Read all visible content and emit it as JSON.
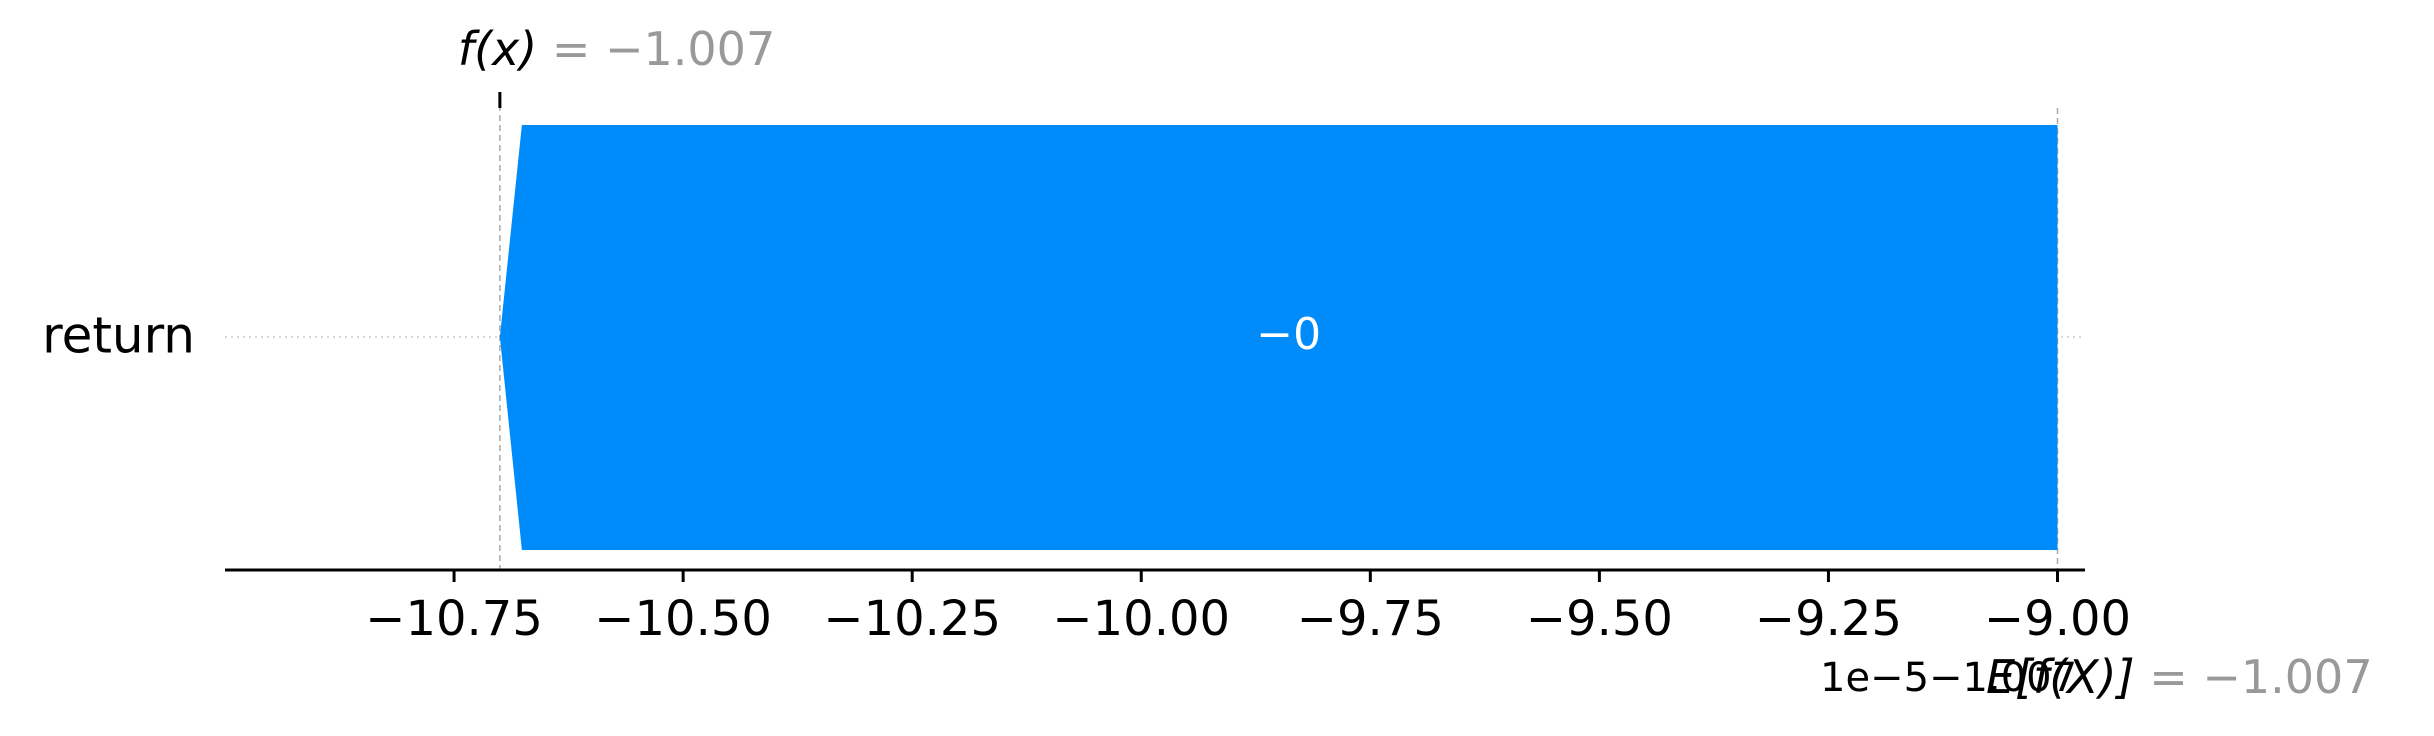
{
  "chart_data": {
    "type": "bar",
    "orientation": "horizontal",
    "style": "shap-waterfall",
    "categories": [
      "return"
    ],
    "bars": [
      {
        "feature": "return",
        "start": -9.0,
        "end": -10.7,
        "label": "−0",
        "color": "#008bfb"
      }
    ],
    "fx": {
      "prefix": "f(x)",
      "value_text": "= −1.007",
      "x": -10.7
    },
    "efx": {
      "prefix": "E[f(X)]",
      "value_text": "= −1.007",
      "x": -9.0
    },
    "offset_text": "1e−5−1.007",
    "xlim": [
      -11.0,
      -8.97
    ],
    "ticks": [
      -10.75,
      -10.5,
      -10.25,
      -10.0,
      -9.75,
      -9.5,
      -9.25,
      -9.0
    ],
    "tick_labels": [
      "−10.75",
      "−10.50",
      "−10.25",
      "−10.00",
      "−9.75",
      "−9.50",
      "−9.25",
      "−9.00"
    ],
    "colors": {
      "negative": "#008bfb",
      "axis": "#000000",
      "muted_text": "#999999",
      "guide": "#cccccc"
    }
  }
}
